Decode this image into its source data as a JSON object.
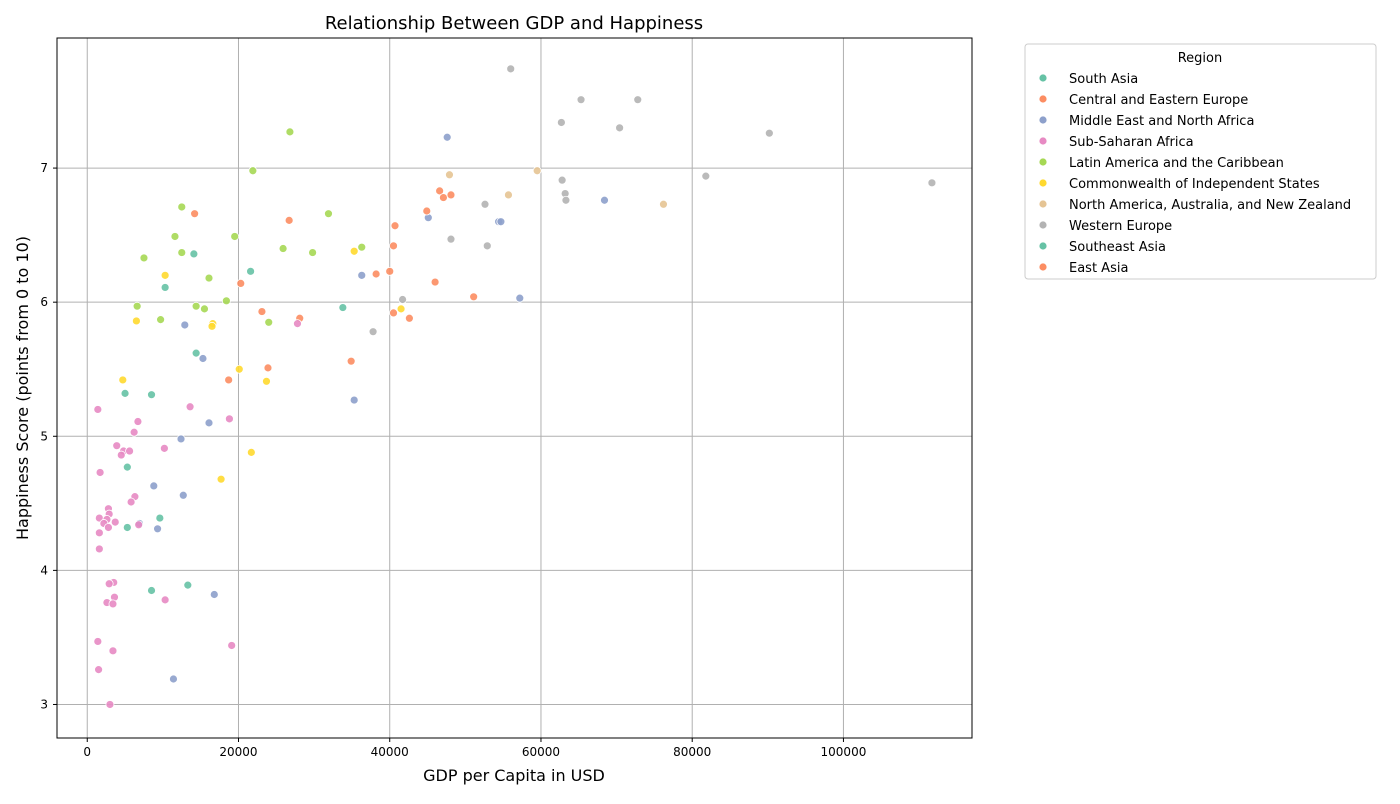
{
  "chart_data": {
    "type": "scatter",
    "title": "Relationship Between GDP and Happiness",
    "xlabel": "GDP per Capita in USD",
    "ylabel": "Happiness Score (points from 0 to 10)",
    "xlim": [
      -4000,
      117000
    ],
    "ylim": [
      2.75,
      7.97
    ],
    "x_ticks": [
      0,
      20000,
      40000,
      60000,
      80000,
      100000
    ],
    "y_ticks": [
      3,
      4,
      5,
      6,
      7
    ],
    "grid": true,
    "legend": {
      "title": "Region",
      "placement": "outside-right-top"
    },
    "series": [
      {
        "name": "South Asia",
        "color": "#66c2a5",
        "points": []
      },
      {
        "name": "Central and Eastern Europe",
        "color": "#fc8d62",
        "points": [
          [
            14200,
            6.66
          ],
          [
            26700,
            6.61
          ],
          [
            20300,
            6.14
          ],
          [
            23100,
            5.93
          ],
          [
            28100,
            5.88
          ],
          [
            18700,
            5.42
          ],
          [
            23900,
            5.51
          ],
          [
            34900,
            5.56
          ],
          [
            40500,
            6.42
          ],
          [
            38200,
            6.21
          ],
          [
            40000,
            6.23
          ],
          [
            40500,
            5.92
          ],
          [
            42600,
            5.88
          ],
          [
            46000,
            6.15
          ],
          [
            51100,
            6.04
          ]
        ]
      },
      {
        "name": "Middle East and North Africa",
        "color": "#8da0cb",
        "points": [
          [
            47600,
            7.23
          ],
          [
            45100,
            6.63
          ],
          [
            54400,
            6.6
          ],
          [
            54700,
            6.6
          ],
          [
            68400,
            6.76
          ],
          [
            57200,
            6.03
          ],
          [
            36300,
            6.2
          ],
          [
            35300,
            5.27
          ],
          [
            12900,
            5.83
          ],
          [
            15300,
            5.58
          ],
          [
            16100,
            5.1
          ],
          [
            12400,
            4.98
          ],
          [
            8800,
            4.63
          ],
          [
            12700,
            4.56
          ],
          [
            9300,
            4.31
          ],
          [
            6900,
            4.35
          ],
          [
            16800,
            3.82
          ],
          [
            11400,
            3.19
          ]
        ]
      },
      {
        "name": "Sub-Saharan Africa",
        "color": "#e78ac3",
        "points": [
          [
            1400,
            5.2
          ],
          [
            6700,
            5.11
          ],
          [
            3900,
            4.93
          ],
          [
            4800,
            4.89
          ],
          [
            5600,
            4.89
          ],
          [
            4500,
            4.86
          ],
          [
            6200,
            5.03
          ],
          [
            10200,
            4.91
          ],
          [
            13600,
            5.22
          ],
          [
            18800,
            5.13
          ],
          [
            27800,
            5.84
          ],
          [
            1700,
            4.73
          ],
          [
            6300,
            4.55
          ],
          [
            5800,
            4.51
          ],
          [
            2800,
            4.46
          ],
          [
            2900,
            4.42
          ],
          [
            1600,
            4.39
          ],
          [
            2600,
            4.38
          ],
          [
            3700,
            4.36
          ],
          [
            2200,
            4.35
          ],
          [
            2800,
            4.32
          ],
          [
            6800,
            4.34
          ],
          [
            1600,
            4.28
          ],
          [
            1600,
            4.16
          ],
          [
            3500,
            3.91
          ],
          [
            2900,
            3.9
          ],
          [
            3600,
            3.8
          ],
          [
            2600,
            3.76
          ],
          [
            3400,
            3.75
          ],
          [
            10300,
            3.78
          ],
          [
            1400,
            3.47
          ],
          [
            3400,
            3.4
          ],
          [
            19100,
            3.44
          ],
          [
            1500,
            3.26
          ],
          [
            3000,
            3.0
          ]
        ]
      },
      {
        "name": "Latin America and the Caribbean",
        "color": "#a6d854",
        "points": [
          [
            26800,
            7.27
          ],
          [
            21900,
            6.98
          ],
          [
            12500,
            6.71
          ],
          [
            11600,
            6.49
          ],
          [
            19500,
            6.49
          ],
          [
            31900,
            6.66
          ],
          [
            7500,
            6.33
          ],
          [
            12500,
            6.37
          ],
          [
            25900,
            6.4
          ],
          [
            29800,
            6.37
          ],
          [
            36300,
            6.41
          ],
          [
            16100,
            6.18
          ],
          [
            18400,
            6.01
          ],
          [
            6600,
            5.97
          ],
          [
            14400,
            5.97
          ],
          [
            15500,
            5.95
          ],
          [
            9700,
            5.87
          ],
          [
            24000,
            5.85
          ]
        ]
      },
      {
        "name": "Commonwealth of Independent States",
        "color": "#ffd92f",
        "points": [
          [
            10300,
            6.2
          ],
          [
            35300,
            6.38
          ],
          [
            6500,
            5.86
          ],
          [
            16600,
            5.84
          ],
          [
            16500,
            5.82
          ],
          [
            41500,
            5.95
          ],
          [
            20100,
            5.5
          ],
          [
            23700,
            5.41
          ],
          [
            4700,
            5.42
          ],
          [
            21700,
            4.88
          ],
          [
            17700,
            4.68
          ]
        ]
      },
      {
        "name": "North America, Australia, and New Zealand",
        "color": "#e5c494",
        "points": [
          [
            47900,
            6.95
          ],
          [
            59500,
            6.98
          ],
          [
            55700,
            6.8
          ],
          [
            76200,
            6.73
          ]
        ]
      },
      {
        "name": "Western Europe",
        "color": "#b3b3b3",
        "points": [
          [
            56000,
            7.74
          ],
          [
            65300,
            7.51
          ],
          [
            72800,
            7.51
          ],
          [
            62700,
            7.34
          ],
          [
            70400,
            7.3
          ],
          [
            90200,
            7.26
          ],
          [
            81800,
            6.94
          ],
          [
            111700,
            6.89
          ],
          [
            62800,
            6.91
          ],
          [
            63200,
            6.81
          ],
          [
            63300,
            6.76
          ],
          [
            52600,
            6.73
          ],
          [
            48100,
            6.47
          ],
          [
            52900,
            6.42
          ],
          [
            41700,
            6.02
          ],
          [
            37800,
            5.78
          ]
        ]
      },
      {
        "name": "Southeast Asia",
        "color": "#66c2a5",
        "points": [
          [
            14100,
            6.36
          ],
          [
            21600,
            6.23
          ],
          [
            10300,
            6.11
          ],
          [
            33800,
            5.96
          ],
          [
            14400,
            5.62
          ],
          [
            5000,
            5.32
          ],
          [
            8500,
            5.31
          ],
          [
            5300,
            4.77
          ],
          [
            9600,
            4.39
          ],
          [
            5300,
            4.32
          ],
          [
            13300,
            3.89
          ],
          [
            8500,
            3.85
          ]
        ]
      },
      {
        "name": "East Asia",
        "color": "#fc8d62",
        "points": [
          [
            46600,
            6.83
          ],
          [
            47100,
            6.78
          ],
          [
            48100,
            6.8
          ],
          [
            44900,
            6.68
          ],
          [
            40700,
            6.57
          ]
        ]
      }
    ]
  }
}
